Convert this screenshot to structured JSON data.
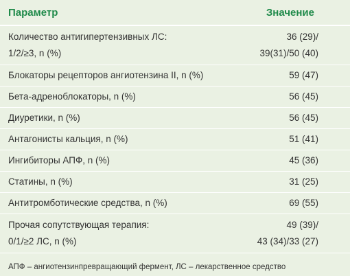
{
  "header": {
    "param": "Параметр",
    "value": "Значение"
  },
  "rows": [
    {
      "param_lines": [
        "Количество антигипертензивных ЛС:",
        "1/2/≥3, n (%)"
      ],
      "value_lines": [
        "36 (29)/",
        "39(31)/50 (40)"
      ]
    },
    {
      "param": "Блокаторы рецепторов ангиотензина II, n (%)",
      "value": "59 (47)"
    },
    {
      "param": "Бета-адреноблокаторы, n (%)",
      "value": "56 (45)"
    },
    {
      "param": "Диуретики, n (%)",
      "value": "56 (45)"
    },
    {
      "param": "Антагонисты кальция, n (%)",
      "value": "51 (41)"
    },
    {
      "param": "Ингибиторы АПФ, n (%)",
      "value": "45 (36)"
    },
    {
      "param": "Статины, n (%)",
      "value": "31 (25)"
    },
    {
      "param": "Антитромботические средства, n (%)",
      "value": "69 (55)"
    },
    {
      "param_lines": [
        "Прочая сопутствующая терапия:",
        "0/1/≥2 ЛС, n (%)"
      ],
      "value_lines": [
        "49 (39)/",
        "43 (34)/33 (27)"
      ]
    }
  ],
  "footnote": "АПФ – ангиотензинпревращающий фермент, ЛС – лекарственное средство",
  "colors": {
    "background": "#eaf1e3",
    "header_text": "#1f8a4a",
    "divider": "#ffffff"
  }
}
